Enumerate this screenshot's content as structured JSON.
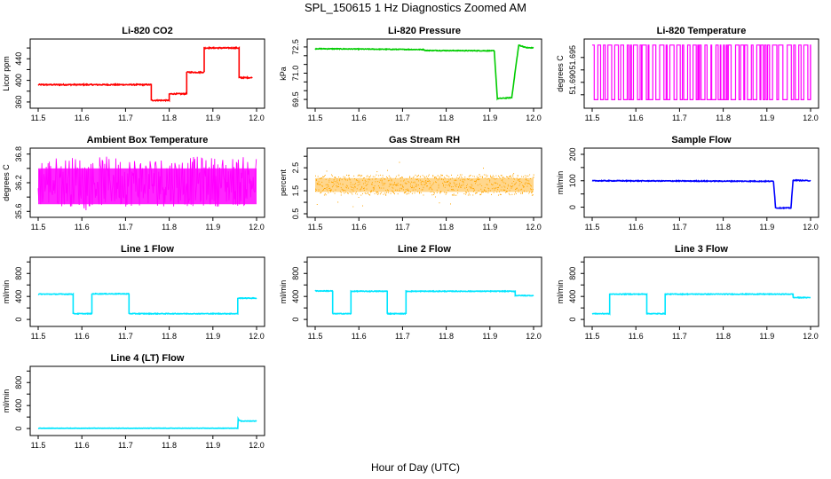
{
  "figure": {
    "title": "SPL_150615  1 Hz Diagnostics Zoomed AM",
    "xlabel": "Hour of Day (UTC)"
  },
  "chart_data": [
    {
      "type": "line",
      "title": "Li-820 CO2",
      "ylabel": "Licor ppm",
      "color": "#ff0000",
      "xlim": [
        11.5,
        12.0
      ],
      "ylim": [
        355,
        470
      ],
      "xticks": [
        11.5,
        11.6,
        11.7,
        11.8,
        11.9,
        12.0
      ],
      "xtick_labels": [
        "11.5",
        "11.6",
        "11.7",
        "11.8",
        "11.9",
        "12.0"
      ],
      "yticks": [
        360,
        400,
        440
      ],
      "ytick_labels": [
        "360",
        "400",
        "440"
      ],
      "minor_yticks": [
        380,
        420,
        460
      ],
      "x": [
        11.5,
        11.759,
        11.759,
        11.8,
        11.8,
        11.84,
        11.84,
        11.88,
        11.88,
        11.96,
        11.96,
        11.99
      ],
      "y": [
        392,
        392,
        363,
        363,
        375,
        375,
        415,
        415,
        460,
        460,
        405,
        405
      ],
      "noise": 1.0
    },
    {
      "type": "line",
      "title": "Li-820 Pressure",
      "ylabel": "kPa",
      "color": "#00cc00",
      "xlim": [
        11.5,
        12.0
      ],
      "ylim": [
        69.2,
        72.75
      ],
      "xticks": [
        11.5,
        11.6,
        11.7,
        11.8,
        11.9,
        12.0
      ],
      "xtick_labels": [
        "11.5",
        "11.6",
        "11.7",
        "11.8",
        "11.9",
        "12.0"
      ],
      "yticks": [
        69.5,
        71.0,
        72.5
      ],
      "ytick_labels": [
        "69.5",
        "71.0",
        "72.5"
      ],
      "minor_yticks": [
        70.0,
        70.5,
        71.5,
        72.0
      ],
      "x": [
        11.5,
        11.75,
        11.75,
        11.91,
        11.917,
        11.95,
        11.96,
        11.966,
        11.985,
        12.0
      ],
      "y": [
        72.4,
        72.35,
        72.3,
        72.28,
        69.55,
        69.6,
        71.5,
        72.6,
        72.45,
        72.45
      ],
      "noise": 0.02
    },
    {
      "type": "line",
      "title": "Li-820 Temperature",
      "ylabel": "degrees C",
      "color": "#ff00ff",
      "xlim": [
        11.5,
        12.0
      ],
      "ylim": [
        51.6855,
        51.698
      ],
      "xticks": [
        11.5,
        11.6,
        11.7,
        11.8,
        11.9,
        12.0
      ],
      "xtick_labels": [
        "11.5",
        "11.6",
        "11.7",
        "11.8",
        "11.9",
        "12.0"
      ],
      "yticks": [
        51.69,
        51.695
      ],
      "ytick_labels": [
        "51.690",
        "51.695"
      ],
      "minor_yticks": [
        51.6875,
        51.6925
      ],
      "levels": [
        51.6865,
        51.6975
      ]
    },
    {
      "type": "line",
      "title": "Ambient Box Temperature",
      "ylabel": "degrees C",
      "color": "#ff00ff",
      "xlim": [
        11.5,
        12.0
      ],
      "ylim": [
        35.55,
        36.85
      ],
      "xticks": [
        11.5,
        11.6,
        11.7,
        11.8,
        11.9,
        12.0
      ],
      "xtick_labels": [
        "11.5",
        "11.6",
        "11.7",
        "11.8",
        "11.9",
        "12.0"
      ],
      "yticks": [
        35.6,
        36.2,
        36.8
      ],
      "ytick_labels": [
        "35.6",
        "36.2",
        "36.8"
      ],
      "minor_yticks": [
        35.9,
        36.5
      ],
      "band": [
        35.7,
        36.75
      ]
    },
    {
      "type": "scatter",
      "title": "Gas Stream RH",
      "ylabel": "percent",
      "color": "#ffa500",
      "xlim": [
        11.5,
        12.0
      ],
      "ylim": [
        0.5,
        3.2
      ],
      "xticks": [
        11.5,
        11.6,
        11.7,
        11.8,
        11.9,
        12.0
      ],
      "xtick_labels": [
        "11.5",
        "11.6",
        "11.7",
        "11.8",
        "11.9",
        "12.0"
      ],
      "yticks": [
        0.5,
        1.5,
        2.5
      ],
      "ytick_labels": [
        "0.5",
        "1.5",
        "2.5"
      ],
      "minor_yticks": [
        1.0,
        2.0,
        3.0
      ],
      "band": [
        1.3,
        2.2
      ]
    },
    {
      "type": "line",
      "title": "Sample Flow",
      "ylabel": "ml/min",
      "color": "#0000ff",
      "xlim": [
        11.5,
        12.0
      ],
      "ylim": [
        -25,
        210
      ],
      "xticks": [
        11.5,
        11.6,
        11.7,
        11.8,
        11.9,
        12.0
      ],
      "xtick_labels": [
        "11.5",
        "11.6",
        "11.7",
        "11.8",
        "11.9",
        "12.0"
      ],
      "yticks": [
        0,
        100,
        200
      ],
      "ytick_labels": [
        "0",
        "100",
        "200"
      ],
      "minor_yticks": [
        50,
        150
      ],
      "x": [
        11.5,
        11.915,
        11.92,
        11.955,
        11.96,
        12.0
      ],
      "y": [
        100,
        98,
        -3,
        -3,
        102,
        100
      ],
      "noise": 1.5
    },
    {
      "type": "line",
      "title": "Line 1 Flow",
      "ylabel": "ml/min",
      "color": "#00e5ff",
      "xlim": [
        11.5,
        12.0
      ],
      "ylim": [
        -60,
        1020
      ],
      "xticks": [
        11.5,
        11.6,
        11.7,
        11.8,
        11.9,
        12.0
      ],
      "xtick_labels": [
        "11.5",
        "11.6",
        "11.7",
        "11.8",
        "11.9",
        "12.0"
      ],
      "yticks": [
        0,
        400,
        800
      ],
      "ytick_labels": [
        "0",
        "400",
        "800"
      ],
      "minor_yticks": [
        200,
        600,
        1000
      ],
      "x": [
        11.5,
        11.58,
        11.58,
        11.623,
        11.623,
        11.708,
        11.708,
        11.957,
        11.957,
        12.0
      ],
      "y": [
        440,
        440,
        100,
        100,
        445,
        445,
        100,
        100,
        370,
        370
      ],
      "noise": 6
    },
    {
      "type": "line",
      "title": "Line 2 Flow",
      "ylabel": "ml/min",
      "color": "#00e5ff",
      "xlim": [
        11.5,
        12.0
      ],
      "ylim": [
        -60,
        1020
      ],
      "xticks": [
        11.5,
        11.6,
        11.7,
        11.8,
        11.9,
        12.0
      ],
      "xtick_labels": [
        "11.5",
        "11.6",
        "11.7",
        "11.8",
        "11.9",
        "12.0"
      ],
      "yticks": [
        0,
        400,
        800
      ],
      "ytick_labels": [
        "0",
        "400",
        "800"
      ],
      "minor_yticks": [
        200,
        600,
        1000
      ],
      "x": [
        11.5,
        11.54,
        11.54,
        11.582,
        11.582,
        11.665,
        11.665,
        11.708,
        11.708,
        11.958,
        11.958,
        12.0
      ],
      "y": [
        495,
        495,
        100,
        100,
        490,
        490,
        100,
        100,
        490,
        490,
        415,
        415
      ],
      "noise": 6
    },
    {
      "type": "line",
      "title": "Line 3 Flow",
      "ylabel": "ml/min",
      "color": "#00e5ff",
      "xlim": [
        11.5,
        12.0
      ],
      "ylim": [
        -60,
        1020
      ],
      "xticks": [
        11.5,
        11.6,
        11.7,
        11.8,
        11.9,
        12.0
      ],
      "xtick_labels": [
        "11.5",
        "11.6",
        "11.7",
        "11.8",
        "11.9",
        "12.0"
      ],
      "yticks": [
        0,
        400,
        800
      ],
      "ytick_labels": [
        "0",
        "400",
        "800"
      ],
      "minor_yticks": [
        200,
        600,
        1000
      ],
      "x": [
        11.5,
        11.54,
        11.54,
        11.625,
        11.625,
        11.667,
        11.667,
        11.96,
        11.96,
        12.0
      ],
      "y": [
        100,
        100,
        440,
        440,
        100,
        100,
        440,
        440,
        380,
        380
      ],
      "noise": 6
    },
    {
      "type": "line",
      "title": "Line 4 (LT) Flow",
      "ylabel": "ml/min",
      "color": "#00e5ff",
      "xlim": [
        11.5,
        12.0
      ],
      "ylim": [
        -60,
        1020
      ],
      "xticks": [
        11.5,
        11.6,
        11.7,
        11.8,
        11.9,
        12.0
      ],
      "xtick_labels": [
        "11.5",
        "11.6",
        "11.7",
        "11.8",
        "11.9",
        "12.0"
      ],
      "yticks": [
        0,
        400,
        800
      ],
      "ytick_labels": [
        "0",
        "400",
        "800"
      ],
      "minor_yticks": [
        200,
        600,
        1000
      ],
      "x": [
        11.5,
        11.957,
        11.958,
        11.96,
        11.965,
        12.0
      ],
      "y": [
        5,
        5,
        170,
        145,
        130,
        130
      ],
      "noise": 3
    }
  ]
}
